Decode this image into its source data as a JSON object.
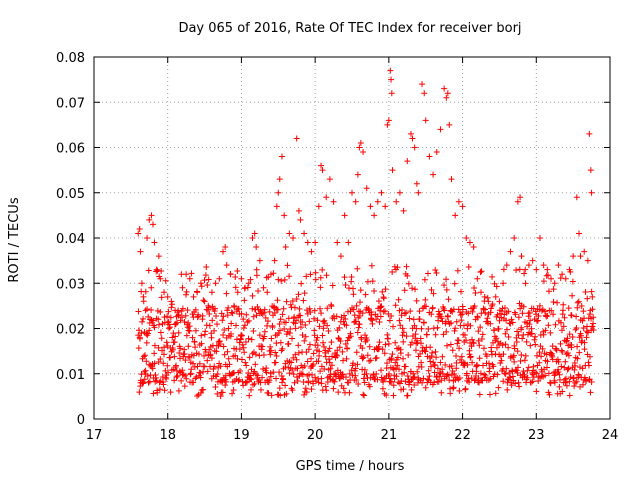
{
  "chart_data": {
    "type": "scatter",
    "title": "Day 065 of 2016, Rate Of TEC Index for receiver borj",
    "xlabel": "GPS time / hours",
    "ylabel": "ROTI / TECUs",
    "xlim": [
      17,
      24
    ],
    "ylim": [
      0,
      0.08
    ],
    "xticks": [
      17,
      18,
      19,
      20,
      21,
      22,
      23,
      24
    ],
    "yticks": [
      0,
      0.01,
      0.02,
      0.03,
      0.04,
      0.05,
      0.06,
      0.07,
      0.08
    ],
    "ytick_labels": [
      "0",
      "0.01",
      "0.02",
      "0.03",
      "0.04",
      "0.05",
      "0.06",
      "0.07",
      "0.08"
    ],
    "grid": true,
    "marker": "+",
    "color": "#ff0000",
    "point_count_note": "dense scatter; representative samples of the plotted ROTI values",
    "series": [
      {
        "name": "ROTI",
        "points": [
          [
            17.6,
            0.041
          ],
          [
            17.62,
            0.042
          ],
          [
            17.63,
            0.037
          ],
          [
            17.65,
            0.03
          ],
          [
            17.67,
            0.027
          ],
          [
            17.7,
            0.024
          ],
          [
            17.72,
            0.04
          ],
          [
            17.75,
            0.044
          ],
          [
            17.78,
            0.045
          ],
          [
            17.8,
            0.043
          ],
          [
            17.82,
            0.039
          ],
          [
            17.85,
            0.033
          ],
          [
            17.88,
            0.036
          ],
          [
            17.9,
            0.031
          ],
          [
            17.95,
            0.028
          ],
          [
            18.0,
            0.027
          ],
          [
            18.05,
            0.026
          ],
          [
            18.1,
            0.024
          ],
          [
            18.15,
            0.023
          ],
          [
            18.2,
            0.029
          ],
          [
            18.25,
            0.032
          ],
          [
            18.3,
            0.031
          ],
          [
            18.35,
            0.027
          ],
          [
            18.4,
            0.028
          ],
          [
            18.45,
            0.03
          ],
          [
            18.5,
            0.026
          ],
          [
            18.55,
            0.025
          ],
          [
            18.6,
            0.028
          ],
          [
            18.65,
            0.03
          ],
          [
            18.7,
            0.031
          ],
          [
            18.75,
            0.037
          ],
          [
            18.78,
            0.038
          ],
          [
            18.8,
            0.034
          ],
          [
            18.85,
            0.032
          ],
          [
            18.9,
            0.025
          ],
          [
            18.95,
            0.028
          ],
          [
            19.0,
            0.031
          ],
          [
            19.05,
            0.029
          ],
          [
            19.1,
            0.03
          ],
          [
            19.15,
            0.04
          ],
          [
            19.18,
            0.041
          ],
          [
            19.2,
            0.038
          ],
          [
            19.25,
            0.035
          ],
          [
            19.3,
            0.029
          ],
          [
            19.35,
            0.028
          ],
          [
            19.4,
            0.032
          ],
          [
            19.45,
            0.035
          ],
          [
            19.48,
            0.047
          ],
          [
            19.5,
            0.05
          ],
          [
            19.52,
            0.053
          ],
          [
            19.55,
            0.058
          ],
          [
            19.58,
            0.045
          ],
          [
            19.6,
            0.038
          ],
          [
            19.65,
            0.041
          ],
          [
            19.7,
            0.04
          ],
          [
            19.75,
            0.062
          ],
          [
            19.78,
            0.046
          ],
          [
            19.8,
            0.044
          ],
          [
            19.85,
            0.041
          ],
          [
            19.9,
            0.039
          ],
          [
            19.95,
            0.037
          ],
          [
            20.0,
            0.039
          ],
          [
            20.05,
            0.047
          ],
          [
            20.08,
            0.056
          ],
          [
            20.1,
            0.055
          ],
          [
            20.15,
            0.049
          ],
          [
            20.2,
            0.053
          ],
          [
            20.25,
            0.048
          ],
          [
            20.3,
            0.039
          ],
          [
            20.35,
            0.036
          ],
          [
            20.4,
            0.045
          ],
          [
            20.45,
            0.039
          ],
          [
            20.5,
            0.05
          ],
          [
            20.55,
            0.048
          ],
          [
            20.58,
            0.054
          ],
          [
            20.6,
            0.06
          ],
          [
            20.62,
            0.061
          ],
          [
            20.65,
            0.059
          ],
          [
            20.7,
            0.051
          ],
          [
            20.75,
            0.047
          ],
          [
            20.8,
            0.045
          ],
          [
            20.85,
            0.048
          ],
          [
            20.9,
            0.05
          ],
          [
            20.95,
            0.047
          ],
          [
            20.98,
            0.065
          ],
          [
            21.0,
            0.066
          ],
          [
            21.02,
            0.077
          ],
          [
            21.03,
            0.075
          ],
          [
            21.04,
            0.072
          ],
          [
            21.05,
            0.055
          ],
          [
            21.1,
            0.048
          ],
          [
            21.15,
            0.05
          ],
          [
            21.2,
            0.046
          ],
          [
            21.25,
            0.057
          ],
          [
            21.3,
            0.063
          ],
          [
            21.32,
            0.062
          ],
          [
            21.35,
            0.06
          ],
          [
            21.38,
            0.052
          ],
          [
            21.4,
            0.05
          ],
          [
            21.45,
            0.074
          ],
          [
            21.48,
            0.072
          ],
          [
            21.5,
            0.066
          ],
          [
            21.55,
            0.058
          ],
          [
            21.6,
            0.054
          ],
          [
            21.65,
            0.059
          ],
          [
            21.7,
            0.064
          ],
          [
            21.75,
            0.073
          ],
          [
            21.78,
            0.071
          ],
          [
            21.8,
            0.072
          ],
          [
            21.82,
            0.065
          ],
          [
            21.85,
            0.053
          ],
          [
            21.9,
            0.045
          ],
          [
            21.95,
            0.048
          ],
          [
            22.0,
            0.047
          ],
          [
            22.05,
            0.04
          ],
          [
            22.1,
            0.039
          ],
          [
            22.15,
            0.038
          ],
          [
            22.2,
            0.031
          ],
          [
            22.25,
            0.028
          ],
          [
            22.3,
            0.027
          ],
          [
            22.35,
            0.026
          ],
          [
            22.4,
            0.025
          ],
          [
            22.45,
            0.027
          ],
          [
            22.5,
            0.026
          ],
          [
            22.55,
            0.03
          ],
          [
            22.6,
            0.034
          ],
          [
            22.65,
            0.037
          ],
          [
            22.7,
            0.04
          ],
          [
            22.75,
            0.048
          ],
          [
            22.78,
            0.049
          ],
          [
            22.8,
            0.036
          ],
          [
            22.85,
            0.033
          ],
          [
            22.9,
            0.034
          ],
          [
            22.95,
            0.035
          ],
          [
            23.0,
            0.033
          ],
          [
            23.05,
            0.04
          ],
          [
            23.1,
            0.034
          ],
          [
            23.15,
            0.033
          ],
          [
            23.2,
            0.031
          ],
          [
            23.25,
            0.03
          ],
          [
            23.3,
            0.034
          ],
          [
            23.35,
            0.032
          ],
          [
            23.4,
            0.031
          ],
          [
            23.45,
            0.033
          ],
          [
            23.5,
            0.036
          ],
          [
            23.55,
            0.049
          ],
          [
            23.58,
            0.041
          ],
          [
            23.6,
            0.036
          ],
          [
            23.65,
            0.037
          ],
          [
            23.7,
            0.035
          ],
          [
            23.72,
            0.063
          ],
          [
            23.74,
            0.055
          ],
          [
            23.75,
            0.05
          ],
          [
            23.76,
            0.027
          ]
        ]
      }
    ],
    "band": {
      "description": "dense band of ROTI samples between roughly 0.003 and 0.03 TECU across the whole observation window",
      "x_range": [
        17.6,
        23.78
      ],
      "y_floor": [
        0.003,
        0.008
      ],
      "y_core": [
        0.008,
        0.025
      ]
    }
  }
}
